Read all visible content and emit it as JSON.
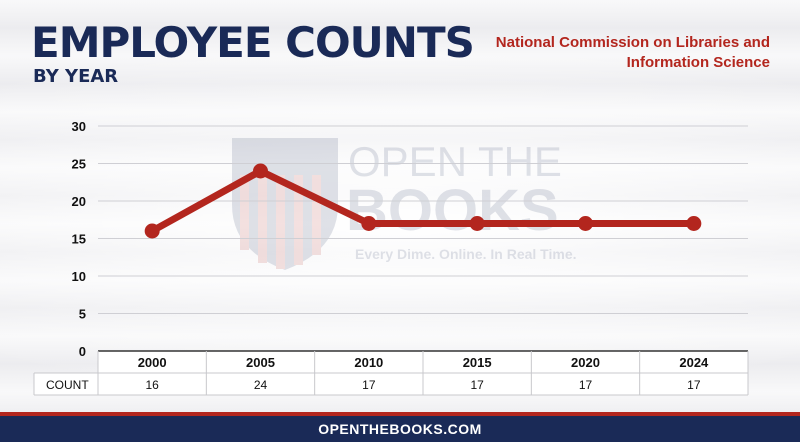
{
  "header": {
    "title": "EMPLOYEE COUNTS",
    "subtitle": "BY YEAR",
    "agency": "National Commission on Libraries and Information Science"
  },
  "watermark": {
    "line1": "OPEN THE",
    "line2": "BOOKS",
    "tagline": "Every Dime. Online. In Real Time."
  },
  "footer": {
    "site": "OPENTHEBOOKS.COM"
  },
  "colors": {
    "navy": "#1a2a57",
    "red": "#b3261e",
    "line": "#b3261e"
  },
  "chart_data": {
    "type": "line",
    "categories": [
      "2000",
      "2005",
      "2010",
      "2015",
      "2020",
      "2024"
    ],
    "series": [
      {
        "values": [
          16,
          24,
          17,
          17,
          17,
          17
        ]
      }
    ],
    "ylim": [
      0,
      30
    ],
    "yticks": [
      0,
      5,
      10,
      15,
      20,
      25,
      30
    ],
    "table_row_label": "COUNT",
    "grid": true
  }
}
